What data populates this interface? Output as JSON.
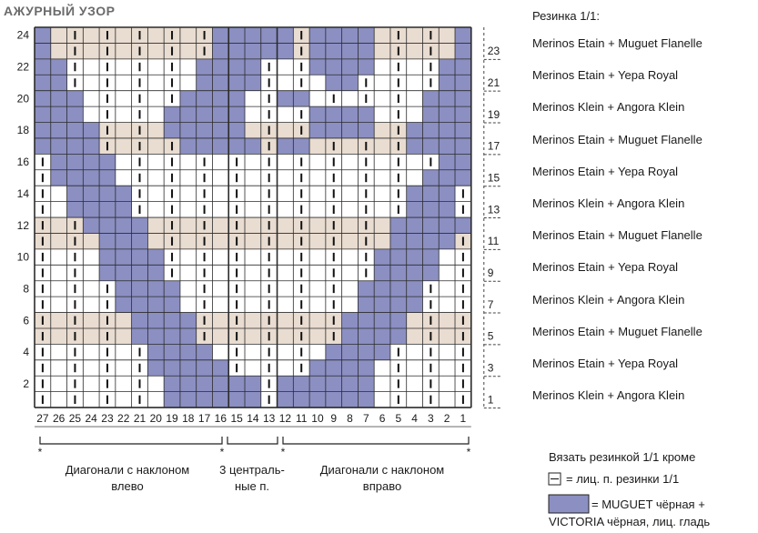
{
  "title": "АЖУРНЫЙ УЗОР",
  "colors": {
    "purple": "#8b8fc2",
    "beige": "#e9dcd0",
    "grid": "#2b2b2b"
  },
  "rows_left_labels": [
    "2",
    "4",
    "6",
    "8",
    "10",
    "12",
    "14",
    "16",
    "18",
    "20",
    "22",
    "24"
  ],
  "rows_right_labels": [
    "1",
    "3",
    "5",
    "7",
    "9",
    "11",
    "13",
    "15",
    "17",
    "19",
    "21",
    "23"
  ],
  "column_labels": [
    "27",
    "26",
    "25",
    "24",
    "23",
    "22",
    "21",
    "20",
    "19",
    "18",
    "17",
    "16",
    "15",
    "14",
    "13",
    "12",
    "11",
    "10",
    "9",
    "8",
    "7",
    "6",
    "5",
    "4",
    "3",
    "2",
    "1"
  ],
  "purple_runs": [
    [
      [
        9,
        14
      ],
      [
        16,
        21
      ]
    ],
    [
      [
        9,
        14
      ],
      [
        16,
        21
      ]
    ],
    [
      [
        8,
        12
      ],
      [
        18,
        21
      ]
    ],
    [
      [
        8,
        11
      ],
      [
        19,
        22
      ]
    ],
    [
      [
        7,
        10
      ],
      [
        20,
        23
      ]
    ],
    [
      [
        7,
        10
      ],
      [
        20,
        23
      ]
    ],
    [
      [
        6,
        9
      ],
      [
        21,
        24
      ]
    ],
    [
      [
        6,
        9
      ],
      [
        21,
        24
      ]
    ],
    [
      [
        5,
        8
      ],
      [
        22,
        25
      ]
    ],
    [
      [
        5,
        8
      ],
      [
        22,
        25
      ]
    ],
    [
      [
        5,
        7
      ],
      [
        23,
        26
      ]
    ],
    [
      [
        4,
        7
      ],
      [
        23,
        27
      ]
    ],
    [
      [
        3,
        6
      ],
      [
        24,
        26
      ]
    ],
    [
      [
        3,
        6
      ],
      [
        24,
        26
      ]
    ],
    [
      [
        2,
        5
      ],
      [
        25,
        27
      ]
    ],
    [
      [
        2,
        5
      ],
      [
        26,
        27
      ]
    ],
    [
      [
        1,
        4
      ],
      [
        10,
        14
      ],
      [
        16,
        17
      ],
      [
        24,
        27
      ]
    ],
    [
      [
        1,
        4
      ],
      [
        9,
        13
      ],
      [
        18,
        21
      ],
      [
        24,
        27
      ]
    ],
    [
      [
        1,
        3
      ],
      [
        9,
        13
      ],
      [
        18,
        21
      ],
      [
        25,
        27
      ]
    ],
    [
      [
        1,
        3
      ],
      [
        10,
        13
      ],
      [
        16,
        17
      ],
      [
        25,
        27
      ]
    ],
    [
      [
        1,
        2
      ],
      [
        11,
        14
      ],
      [
        19,
        20
      ],
      [
        26,
        27
      ]
    ],
    [
      [
        1,
        2
      ],
      [
        11,
        14
      ],
      [
        18,
        21
      ],
      [
        26,
        27
      ]
    ],
    [
      [
        1,
        1
      ],
      [
        12,
        16
      ],
      [
        18,
        21
      ],
      [
        27,
        27
      ]
    ],
    [
      [
        1,
        1
      ],
      [
        12,
        16
      ],
      [
        18,
        21
      ],
      [
        27,
        27
      ]
    ]
  ],
  "beige_rows": [
    5,
    6,
    11,
    12,
    17,
    18,
    23,
    24
  ],
  "legend_title": "Резинка 1/1:",
  "legend_rows": [
    "Merinos Etain + Muguet Flanelle",
    "Merinos Etain + Yepa Royal",
    "Merinos Klein + Angora Klein",
    "Merinos Etain + Muguet Flanelle",
    "Merinos Etain + Yepa Royal",
    "Merinos Klein + Angora Klein",
    "Merinos Etain + Muguet Flanelle",
    "Merinos Etain + Yepa Royal",
    "Merinos Klein + Angora Klein",
    "Merinos Etain + Muguet Flanelle",
    "Merinos Etain + Yepa Royal",
    "Merinos Klein + Angora Klein"
  ],
  "bottom": {
    "left_caption": "Диагонали с наклоном\nвлево",
    "center_caption": "3 централь-\nные п.",
    "right_caption": "Диагонали с наклоном\nвправо"
  },
  "key": {
    "header": "Вязать резинкой 1/1 кроме",
    "rib_label": "= лиц. п. резинки 1/1",
    "purple_label_1": "= MUGUET чёрная +",
    "purple_label_2": "VICTORIA чёрная, лиц. гладь"
  }
}
